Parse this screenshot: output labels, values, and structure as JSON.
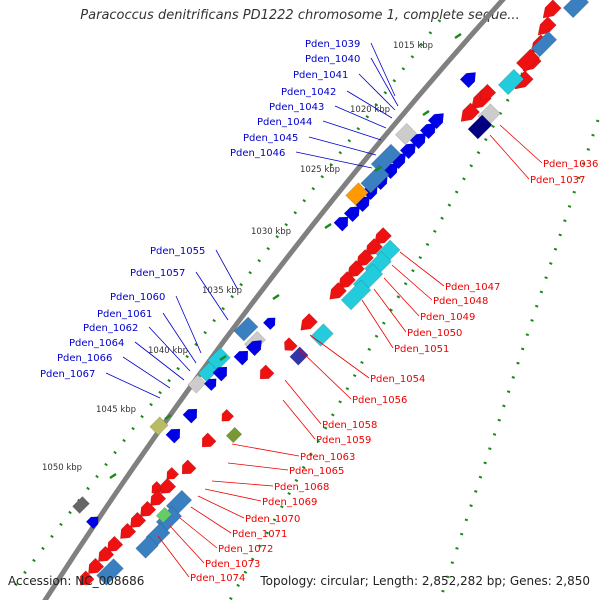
{
  "title": "Paracoccus denitrificans PD1222 chromosome 1, complete seque...",
  "footer": {
    "accession": "Accession: NC_008686",
    "summary": "Topology: circular; Length: 2,852,282 bp; Genes: 2,850"
  },
  "colors": {
    "backbone": "#808080",
    "tick": "#1a8a1a",
    "left_label": "#0000cc",
    "right_label": "#ee0000",
    "forward_gene": "#0000e6",
    "reverse_gene": "#ee1111",
    "cds_feature": "#3a7fc0",
    "rna_feature": "#22ccdd",
    "pseudo_feature": "#cccccc"
  },
  "ticks": [
    "1015 kbp",
    "1020 kbp",
    "1025 kbp",
    "1030 kbp",
    "1035 kbp",
    "1040 kbp",
    "1045 kbp",
    "1050 kbp"
  ],
  "left_labels": [
    "Pden_1039",
    "Pden_1040",
    "Pden_1041",
    "Pden_1042",
    "Pden_1043",
    "Pden_1044",
    "Pden_1045",
    "Pden_1046",
    "Pden_1055",
    "Pden_1057",
    "Pden_1060",
    "Pden_1061",
    "Pden_1062",
    "Pden_1064",
    "Pden_1066",
    "Pden_1067"
  ],
  "right_labels": [
    "Pden_1036",
    "Pden_1037",
    "Pden_1047",
    "Pden_1048",
    "Pden_1049",
    "Pden_1050",
    "Pden_1051",
    "Pden_1054",
    "Pden_1056",
    "Pden_1058",
    "Pden_1059",
    "Pden_1063",
    "Pden_1065",
    "Pden_1068",
    "Pden_1069",
    "Pden_1070",
    "Pden_1071",
    "Pden_1072",
    "Pden_1073",
    "Pden_1074"
  ]
}
